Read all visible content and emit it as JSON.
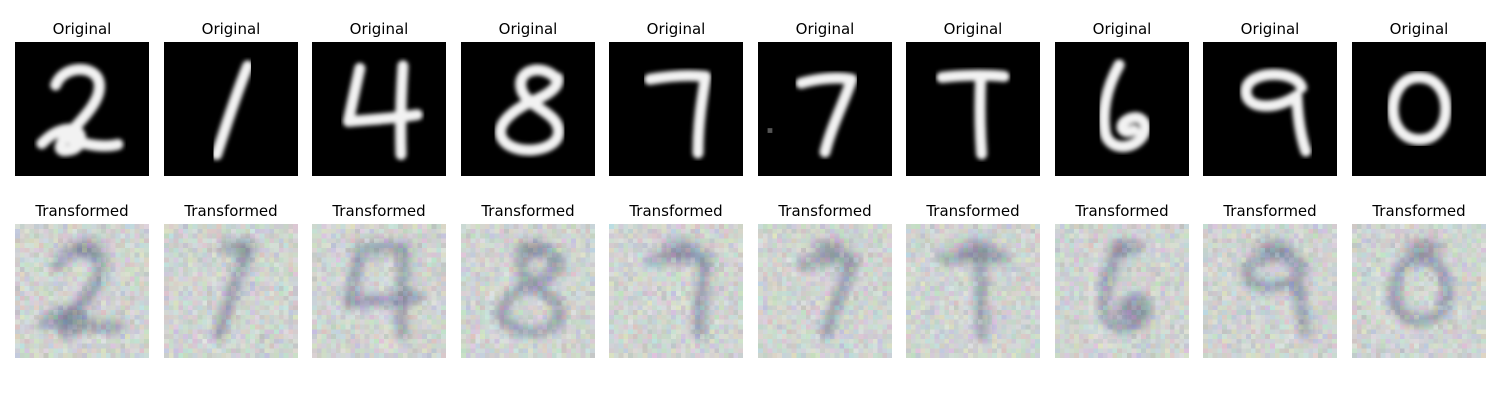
{
  "figure": {
    "colors": {
      "original_background": "#000000",
      "original_digit": "#f2f2f2",
      "transformed_background": "#d2d8d4",
      "transformed_digit": "#5f6b8c",
      "transformed_highlight": "#eef0ee"
    },
    "rows": [
      {
        "kind": "original",
        "panels": [
          {
            "title": "Original",
            "digit": "2"
          },
          {
            "title": "Original",
            "digit": "1"
          },
          {
            "title": "Original",
            "digit": "4"
          },
          {
            "title": "Original",
            "digit": "8"
          },
          {
            "title": "Original",
            "digit": "7"
          },
          {
            "title": "Original",
            "digit": "7"
          },
          {
            "title": "Original",
            "digit": "7"
          },
          {
            "title": "Original",
            "digit": "6"
          },
          {
            "title": "Original",
            "digit": "9"
          },
          {
            "title": "Original",
            "digit": "0"
          }
        ]
      },
      {
        "kind": "transformed",
        "panels": [
          {
            "title": "Transformed",
            "digit": "2"
          },
          {
            "title": "Transformed",
            "digit": "1"
          },
          {
            "title": "Transformed",
            "digit": "4"
          },
          {
            "title": "Transformed",
            "digit": "8"
          },
          {
            "title": "Transformed",
            "digit": "7"
          },
          {
            "title": "Transformed",
            "digit": "7"
          },
          {
            "title": "Transformed",
            "digit": "7"
          },
          {
            "title": "Transformed",
            "digit": "6"
          },
          {
            "title": "Transformed",
            "digit": "9"
          },
          {
            "title": "Transformed",
            "digit": "0"
          }
        ]
      }
    ]
  }
}
